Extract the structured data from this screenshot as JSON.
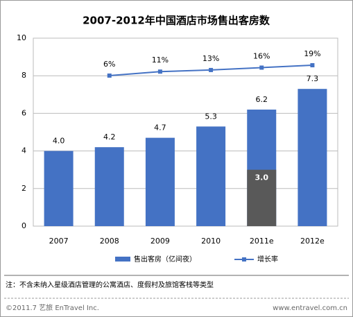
{
  "chart_data": {
    "type": "bar",
    "title": "2007-2012年中国酒店市场售出客房数",
    "categories": [
      "2007",
      "2008",
      "2009",
      "2010",
      "2011e",
      "2012e"
    ],
    "series": [
      {
        "name": "售出客房（亿间夜）",
        "color": "#4472c4",
        "values": [
          4.0,
          4.2,
          4.7,
          5.3,
          6.2,
          7.3
        ],
        "value_labels": [
          "4.0",
          "4.2",
          "4.7",
          "5.3",
          "6.2",
          "7.3"
        ]
      },
      {
        "name": "增长率",
        "type": "line",
        "axis": "y2",
        "color": "#4472c4",
        "values": [
          null,
          6,
          11,
          13,
          16,
          19
        ],
        "value_labels": [
          null,
          "6%",
          "11%",
          "13%",
          "16%",
          "19%"
        ]
      }
    ],
    "inset_values": [
      null,
      null,
      null,
      null,
      3.0,
      null
    ],
    "inset_value_labels": [
      null,
      null,
      null,
      null,
      "3.0",
      null
    ],
    "inset_color": "#595959",
    "ylim": [
      0,
      10
    ],
    "yticks": [
      0,
      2,
      4,
      6,
      8,
      10
    ],
    "y2lim": [
      -183,
      53
    ],
    "grid": true,
    "note": "注：不含未纳入星级酒店管理的公寓酒店、度假村及旅馆客栈等类型",
    "footer_left": "©2011.7 艺旅 EnTravel Inc.",
    "footer_right": "www.entravel.com.cn"
  }
}
